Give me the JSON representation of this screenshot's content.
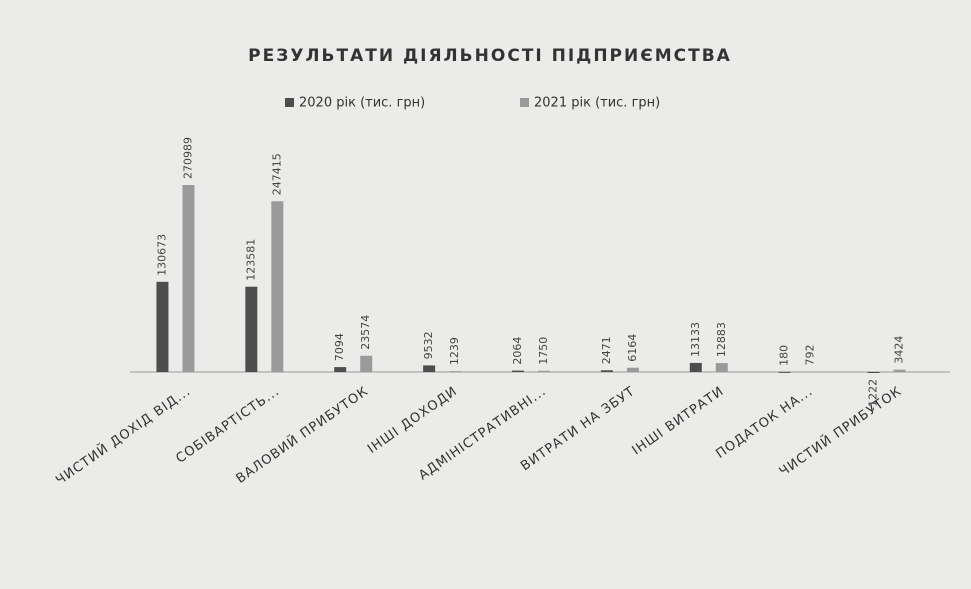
{
  "chart_data": {
    "type": "bar",
    "title": "РЕЗУЛЬТАТИ ДІЯЛЬНОСТІ ПІДПРИЄМСТВА",
    "categories": [
      "ЧИСТИЙ ДОХІД ВІД...",
      "СОБІВАРТІСТЬ...",
      "ВАЛОВИЙ ПРИБУТОК",
      "ІНШІ ДОХОДИ",
      "АДМІНІСТРАТИВНІ...",
      "ВИТРАТИ НА ЗБУТ",
      "ІНШІ ВИТРАТИ",
      "ПОДАТОК НА...",
      "ЧИСТИЙ ПРИБУТОК"
    ],
    "series": [
      {
        "name": "2020 рік (тис. грн)",
        "color": "#4d4d4d",
        "values": [
          130673,
          123581,
          7094,
          9532,
          2064,
          2471,
          13133,
          180,
          -1222
        ]
      },
      {
        "name": "2021 рік (тис. грн)",
        "color": "#9a9a9a",
        "values": [
          270989,
          247415,
          23574,
          1239,
          1750,
          6164,
          12883,
          792,
          3424
        ]
      }
    ],
    "grid": false
  }
}
